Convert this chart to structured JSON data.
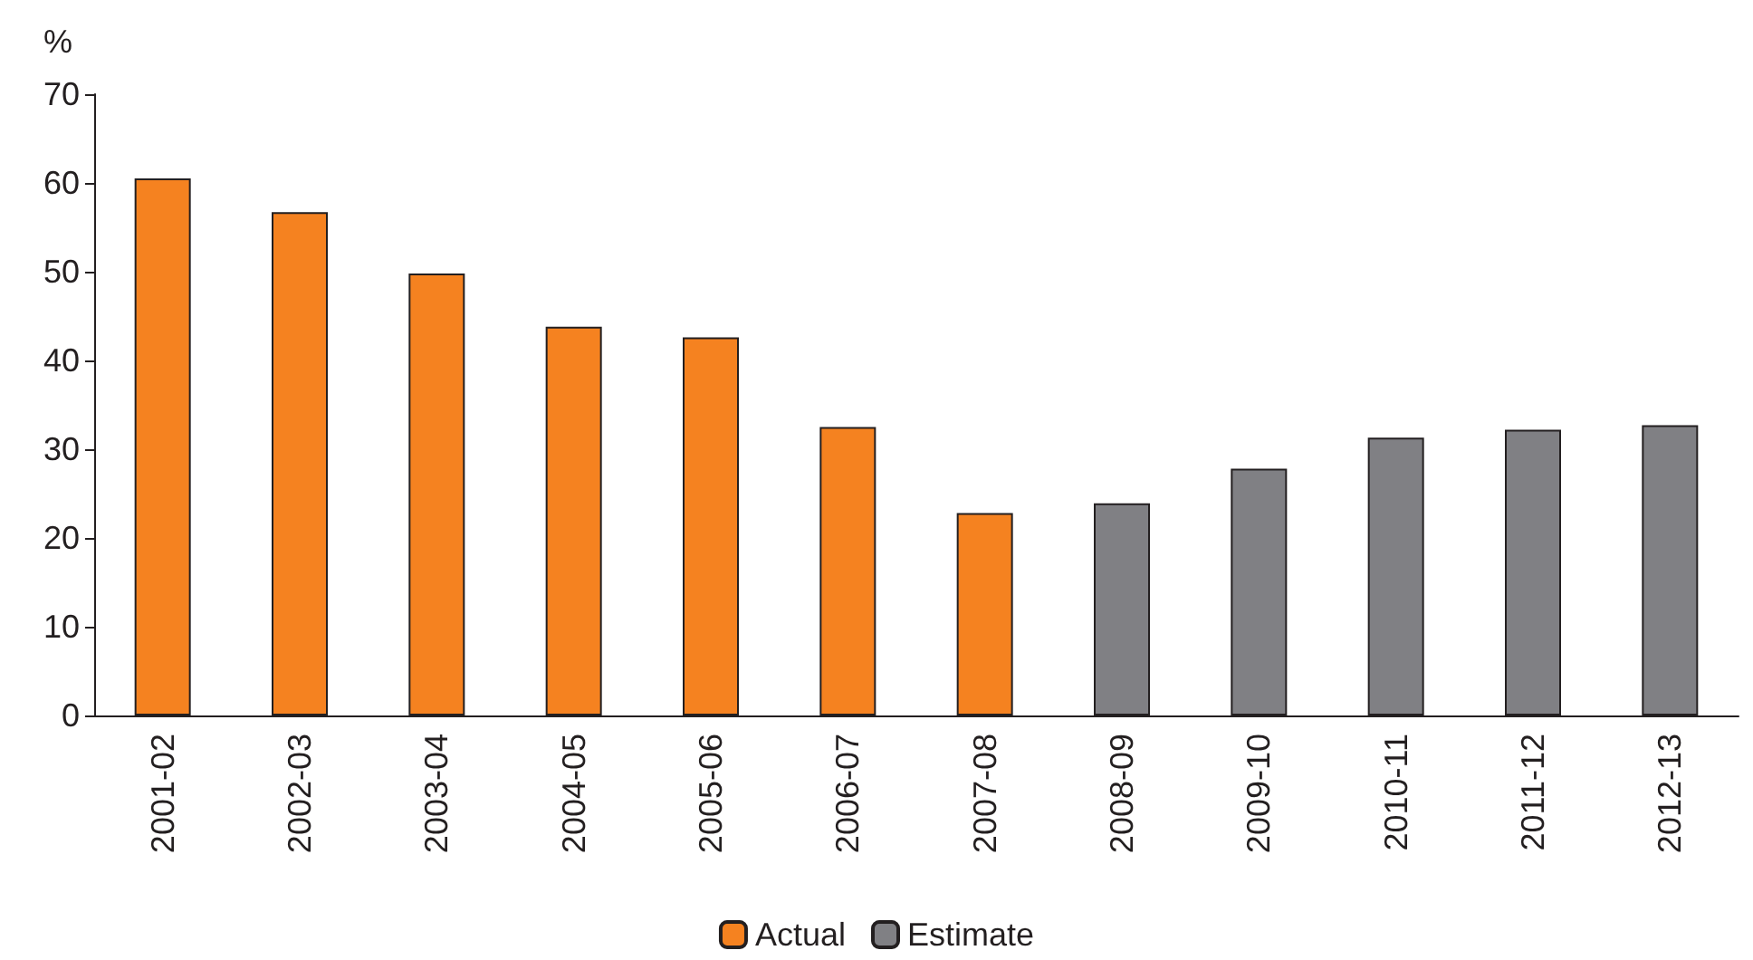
{
  "chart_data": {
    "type": "bar",
    "ylabel": "%",
    "categories": [
      "2001-02",
      "2002-03",
      "2003-04",
      "2004-05",
      "2005-06",
      "2006-07",
      "2007-08",
      "2008-09",
      "2009-10",
      "2010-11",
      "2011-12",
      "2012-13"
    ],
    "series": [
      {
        "name": "Actual",
        "color": "#f58220",
        "values": [
          60.5,
          56.7,
          49.8,
          43.8,
          42.6,
          32.5,
          22.8,
          null,
          null,
          null,
          null,
          null
        ]
      },
      {
        "name": "Estimate",
        "color": "#808084",
        "values": [
          null,
          null,
          null,
          null,
          null,
          null,
          null,
          23.9,
          27.8,
          31.3,
          32.2,
          32.7
        ]
      }
    ],
    "ylim": [
      0,
      70
    ],
    "yticks": [
      0,
      10,
      20,
      30,
      40,
      50,
      60,
      70
    ],
    "grid": false,
    "legend": "bottom"
  }
}
